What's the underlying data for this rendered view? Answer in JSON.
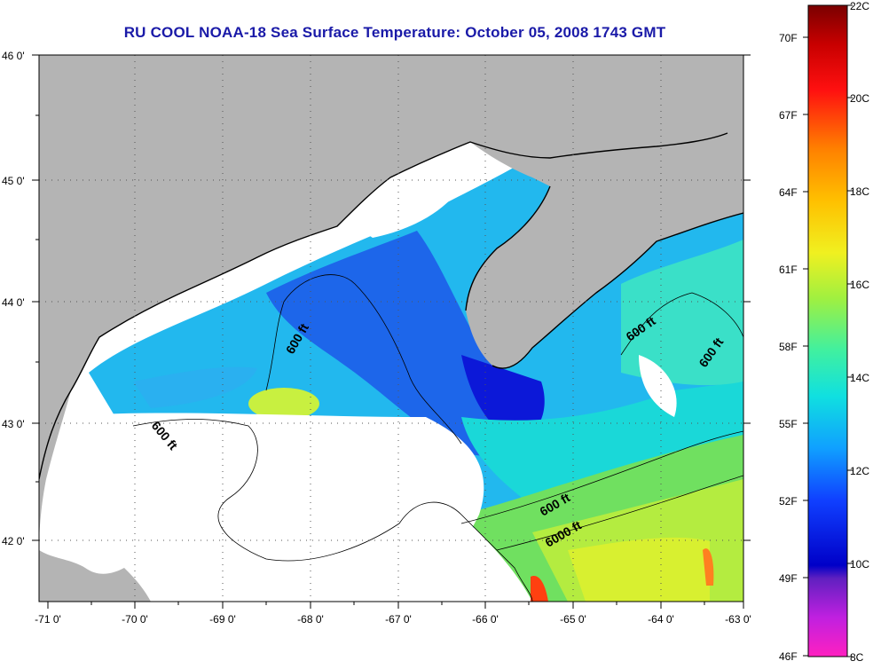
{
  "title": "RU COOL  NOAA-18  Sea Surface Temperature:  October 05, 2008 1743 GMT",
  "map": {
    "lat_labels": [
      "46 0'",
      "45 0'",
      "44 0'",
      "43 0'",
      "42 0'"
    ],
    "lon_labels": [
      "-71 0'",
      "-70 0'",
      "-69 0'",
      "-68 0'",
      "-67 0'",
      "-66 0'",
      "-65 0'",
      "-64 0'",
      "-63 0'"
    ],
    "contour_labels": [
      "600 ft",
      "600 ft",
      "600 ft",
      "600 ft",
      "600 ft",
      "6000 ft"
    ],
    "colors": {
      "land": "#b4b4b4",
      "cloud": "#ffffff"
    }
  },
  "colorbar": {
    "fahrenheit_labels": [
      "70F",
      "67F",
      "64F",
      "61F",
      "58F",
      "55F",
      "52F",
      "49F",
      "46F"
    ],
    "celsius_labels": [
      "22C",
      "20C",
      "18C",
      "16C",
      "14C",
      "12C",
      "10C",
      "8C"
    ],
    "gradient_colors": [
      "#8b0000",
      "#ff0000",
      "#ff8000",
      "#ffd000",
      "#ffff20",
      "#a0ff40",
      "#40ffa0",
      "#00e0e0",
      "#00a0ff",
      "#2040ff",
      "#0000d0",
      "#6020c0",
      "#c020e0",
      "#ff20c0"
    ]
  }
}
